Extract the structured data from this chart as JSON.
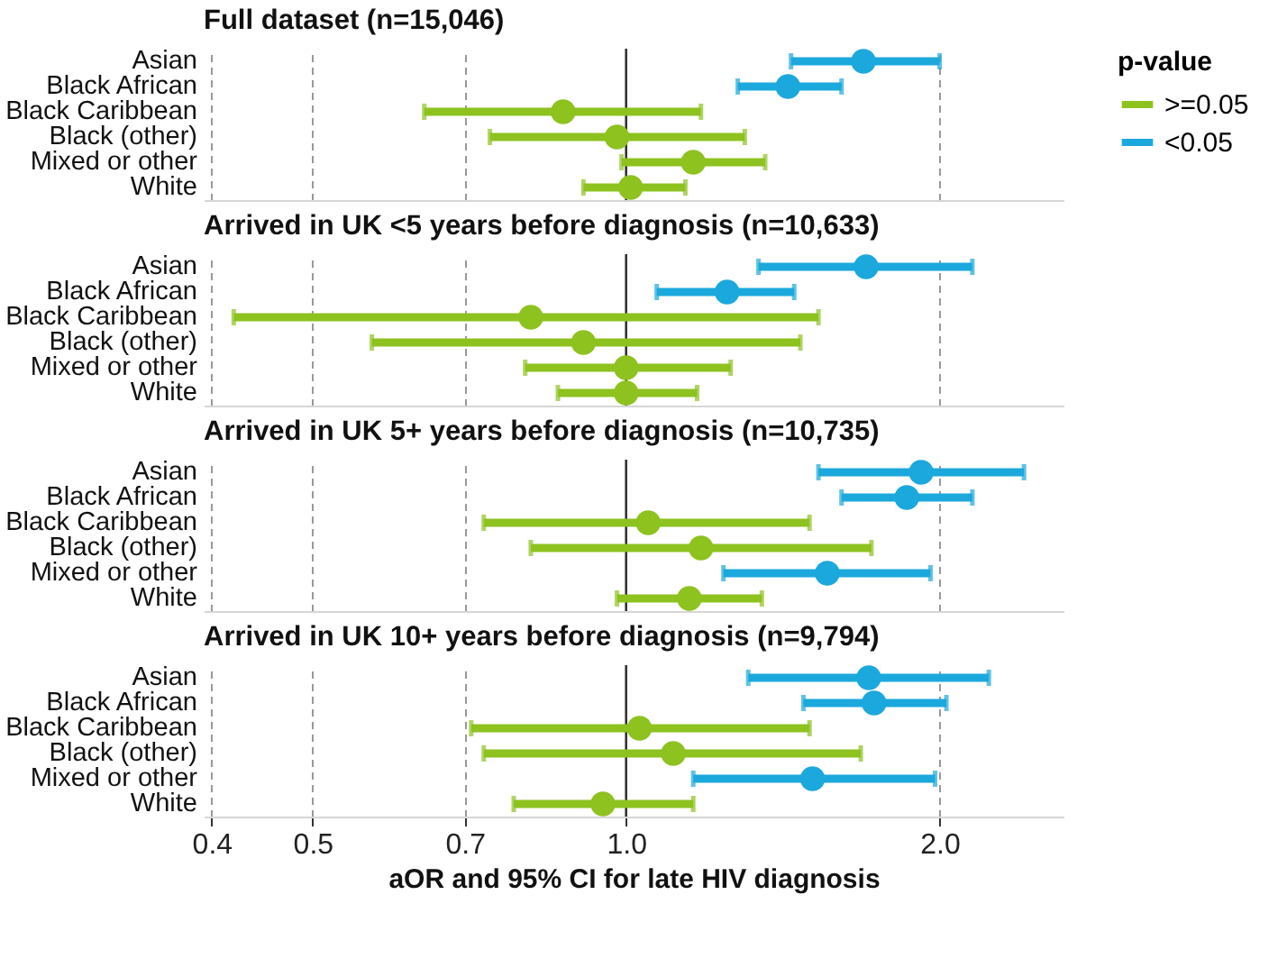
{
  "chart_data": [
    {
      "type": "scatter",
      "title": "Full dataset (n=15,046)",
      "orientation": "horizontal",
      "log": "x",
      "categories": [
        "Asian",
        "Black African",
        "Black Caribbean",
        "Black (other)",
        "Mixed or other",
        "White"
      ],
      "series": [
        {
          "name": ">=0.05",
          "color": "#8dc21f",
          "values": [
            null,
            null,
            0.87,
            0.98,
            1.16,
            1.01
          ],
          "errors": [
            null,
            null,
            [
              0.64,
              1.18
            ],
            [
              0.74,
              1.3
            ],
            [
              0.99,
              1.36
            ],
            [
              0.91,
              1.14
            ]
          ]
        },
        {
          "name": "<0.05",
          "color": "#1ba8dc",
          "values": [
            1.69,
            1.43,
            null,
            null,
            null,
            null
          ],
          "errors": [
            [
              1.44,
              2.0
            ],
            [
              1.28,
              1.61
            ],
            null,
            null,
            null,
            null
          ]
        }
      ],
      "xlim": [
        0.393,
        2.63
      ],
      "xticks": [
        0.4,
        0.5,
        0.7,
        1,
        2
      ],
      "ref_lines": [
        {
          "axis": "x",
          "value": 1,
          "color": "#333333",
          "line_style": "solid"
        }
      ],
      "grid": "x",
      "line_style": "dashed",
      "marker": "circle",
      "tick_labels": "y",
      "legend": "right",
      "legend_title": "p-value"
    },
    {
      "type": "scatter",
      "title": "Arrived in UK <5 years before diagnosis (n=10,633)",
      "orientation": "horizontal",
      "log": "x",
      "categories": [
        "Asian",
        "Black African",
        "Black Caribbean",
        "Black (other)",
        "Mixed or other",
        "White"
      ],
      "series": [
        {
          "name": ">=0.05",
          "color": "#8dc21f",
          "values": [
            null,
            null,
            0.81,
            0.91,
            1.0,
            1.0
          ],
          "errors": [
            null,
            null,
            [
              0.42,
              1.53
            ],
            [
              0.57,
              1.47
            ],
            [
              0.8,
              1.26
            ],
            [
              0.86,
              1.17
            ]
          ]
        },
        {
          "name": "<0.05",
          "color": "#1ba8dc",
          "values": [
            1.7,
            1.25,
            null,
            null,
            null,
            null
          ],
          "errors": [
            [
              1.34,
              2.15
            ],
            [
              1.07,
              1.45
            ],
            null,
            null,
            null,
            null
          ]
        }
      ],
      "xlim": [
        0.393,
        2.63
      ],
      "xticks": [
        0.4,
        0.5,
        0.7,
        1,
        2
      ],
      "ref_lines": [
        {
          "axis": "x",
          "value": 1,
          "color": "#333333",
          "line_style": "solid"
        }
      ],
      "grid": "x",
      "line_style": "dashed",
      "marker": "circle",
      "tick_labels": "y",
      "legend": "right"
    },
    {
      "type": "scatter",
      "title": "Arrived in UK 5+ years before diagnosis (n=10,735)",
      "orientation": "horizontal",
      "log": "x",
      "categories": [
        "Asian",
        "Black African",
        "Black Caribbean",
        "Black (other)",
        "Mixed or other",
        "White"
      ],
      "series": [
        {
          "name": ">=0.05",
          "color": "#8dc21f",
          "values": [
            null,
            null,
            1.05,
            1.18,
            null,
            1.15
          ],
          "errors": [
            null,
            null,
            [
              0.73,
              1.5
            ],
            [
              0.81,
              1.72
            ],
            null,
            [
              0.98,
              1.35
            ]
          ]
        },
        {
          "name": "<0.05",
          "color": "#1ba8dc",
          "values": [
            1.92,
            1.86,
            null,
            null,
            1.56,
            null
          ],
          "errors": [
            [
              1.53,
              2.41
            ],
            [
              1.61,
              2.15
            ],
            null,
            null,
            [
              1.24,
              1.96
            ],
            null
          ]
        }
      ],
      "xlim": [
        0.393,
        2.63
      ],
      "xticks": [
        0.4,
        0.5,
        0.7,
        1,
        2
      ],
      "ref_lines": [
        {
          "axis": "x",
          "value": 1,
          "color": "#333333",
          "line_style": "solid"
        }
      ],
      "grid": "x",
      "line_style": "dashed",
      "marker": "circle",
      "tick_labels": "y",
      "legend": "right"
    },
    {
      "type": "scatter",
      "title": "Arrived in UK 10+ years before diagnosis (n=9,794)",
      "xlabel": "aOR and 95% CI for late HIV diagnosis",
      "orientation": "horizontal",
      "log": "x",
      "categories": [
        "Asian",
        "Black African",
        "Black Caribbean",
        "Black (other)",
        "Mixed or other",
        "White"
      ],
      "series": [
        {
          "name": ">=0.05",
          "color": "#8dc21f",
          "values": [
            null,
            null,
            1.03,
            1.11,
            null,
            0.95
          ],
          "errors": [
            null,
            null,
            [
              0.71,
              1.5
            ],
            [
              0.73,
              1.68
            ],
            null,
            [
              0.78,
              1.16
            ]
          ]
        },
        {
          "name": "<0.05",
          "color": "#1ba8dc",
          "values": [
            1.71,
            1.73,
            null,
            null,
            1.51,
            null
          ],
          "errors": [
            [
              1.31,
              2.23
            ],
            [
              1.48,
              2.03
            ],
            null,
            null,
            [
              1.16,
              1.98
            ],
            null
          ]
        }
      ],
      "xlim": [
        0.393,
        2.63
      ],
      "xticks": [
        {
          "value": 0.4,
          "label": "0.4"
        },
        {
          "value": 0.5,
          "label": "0.5"
        },
        {
          "value": 0.7,
          "label": "0.7"
        },
        {
          "value": 1,
          "label": "1.0"
        },
        {
          "value": 2,
          "label": "2.0"
        }
      ],
      "ref_lines": [
        {
          "axis": "x",
          "value": 1,
          "color": "#333333",
          "line_style": "solid"
        }
      ],
      "grid": "x",
      "line_style": "dashed",
      "marker": "circle",
      "legend": "right"
    }
  ]
}
